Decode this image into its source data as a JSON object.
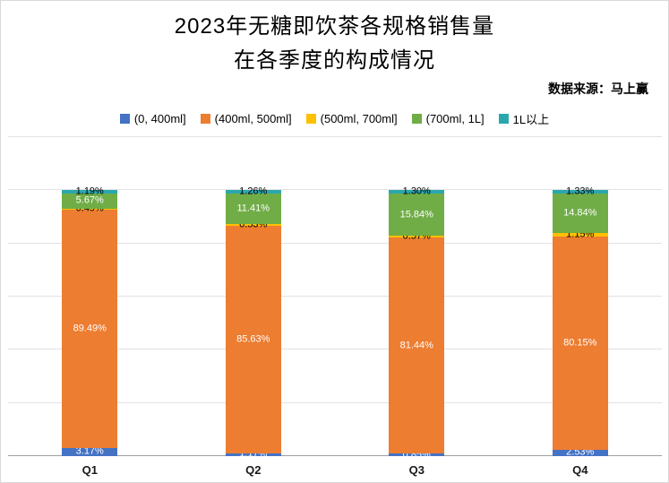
{
  "title": {
    "line1": "2023年无糖即饮茶各规格销售量",
    "line2": "在各季度的构成情况"
  },
  "source": "数据来源：马上赢",
  "chart_data": {
    "type": "bar",
    "subtype": "stacked-percentage",
    "title": "2023年无糖即饮茶各规格销售量在各季度的构成情况",
    "categories": [
      "Q1",
      "Q2",
      "Q3",
      "Q4"
    ],
    "series": [
      {
        "name": "(0, 400ml]",
        "color": "#4472C4",
        "label_color": "#FFFFFF",
        "values": [
          3.17,
          1.17,
          0.85,
          2.53
        ]
      },
      {
        "name": "(400ml, 500ml]",
        "color": "#ED7D31",
        "label_color": "#FFFFFF",
        "values": [
          89.49,
          85.63,
          81.44,
          80.15
        ]
      },
      {
        "name": "(500ml, 700ml]",
        "color": "#FFC000",
        "label_color": "#000000",
        "values": [
          0.49,
          0.53,
          0.57,
          1.15
        ]
      },
      {
        "name": "(700ml, 1L]",
        "color": "#70AD47",
        "label_color": "#FFFFFF",
        "values": [
          5.67,
          11.41,
          15.84,
          14.84
        ]
      },
      {
        "name": "1L以上",
        "color": "#2AA7AD",
        "label_color": "#000000",
        "values": [
          1.19,
          1.26,
          1.3,
          1.33
        ]
      }
    ],
    "value_suffix": "%",
    "value_decimals": 2,
    "xlabel": "",
    "ylabel": "",
    "ylim": [
      0,
      120
    ],
    "gridline_step": 20,
    "grid": true,
    "legend_position": "top"
  }
}
